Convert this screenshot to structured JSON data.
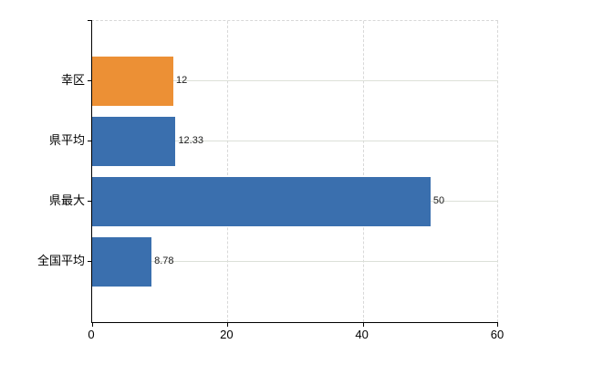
{
  "chart_data": {
    "type": "bar",
    "orientation": "horizontal",
    "title": "",
    "xlabel": "",
    "ylabel": "",
    "categories": [
      "幸区",
      "県平均",
      "県最大",
      "全国平均"
    ],
    "series": [
      {
        "name": "",
        "values": [
          12,
          12.33,
          50,
          8.78
        ]
      }
    ],
    "value_labels": [
      "12",
      "12.33",
      "50",
      "8.78"
    ],
    "bar_colors": [
      "#ec9035",
      "#3a6fae",
      "#3a6fae",
      "#3a6fae"
    ],
    "xlim": [
      0,
      60
    ],
    "x_tick_values": [
      0,
      20,
      40,
      60
    ],
    "x_tick_labels": [
      "0",
      "20",
      "40",
      "60"
    ],
    "grid": {
      "vertical_style": "dashed",
      "horizontal_style": "solid",
      "legend": "none"
    },
    "colors": {
      "axis": "#000000",
      "grid_vertical": "#d8d8d8",
      "grid_horizontal": "#dce0d8",
      "value_label": "#1a1a1a",
      "tick_label": "#000000",
      "background": "#ffffff"
    }
  }
}
